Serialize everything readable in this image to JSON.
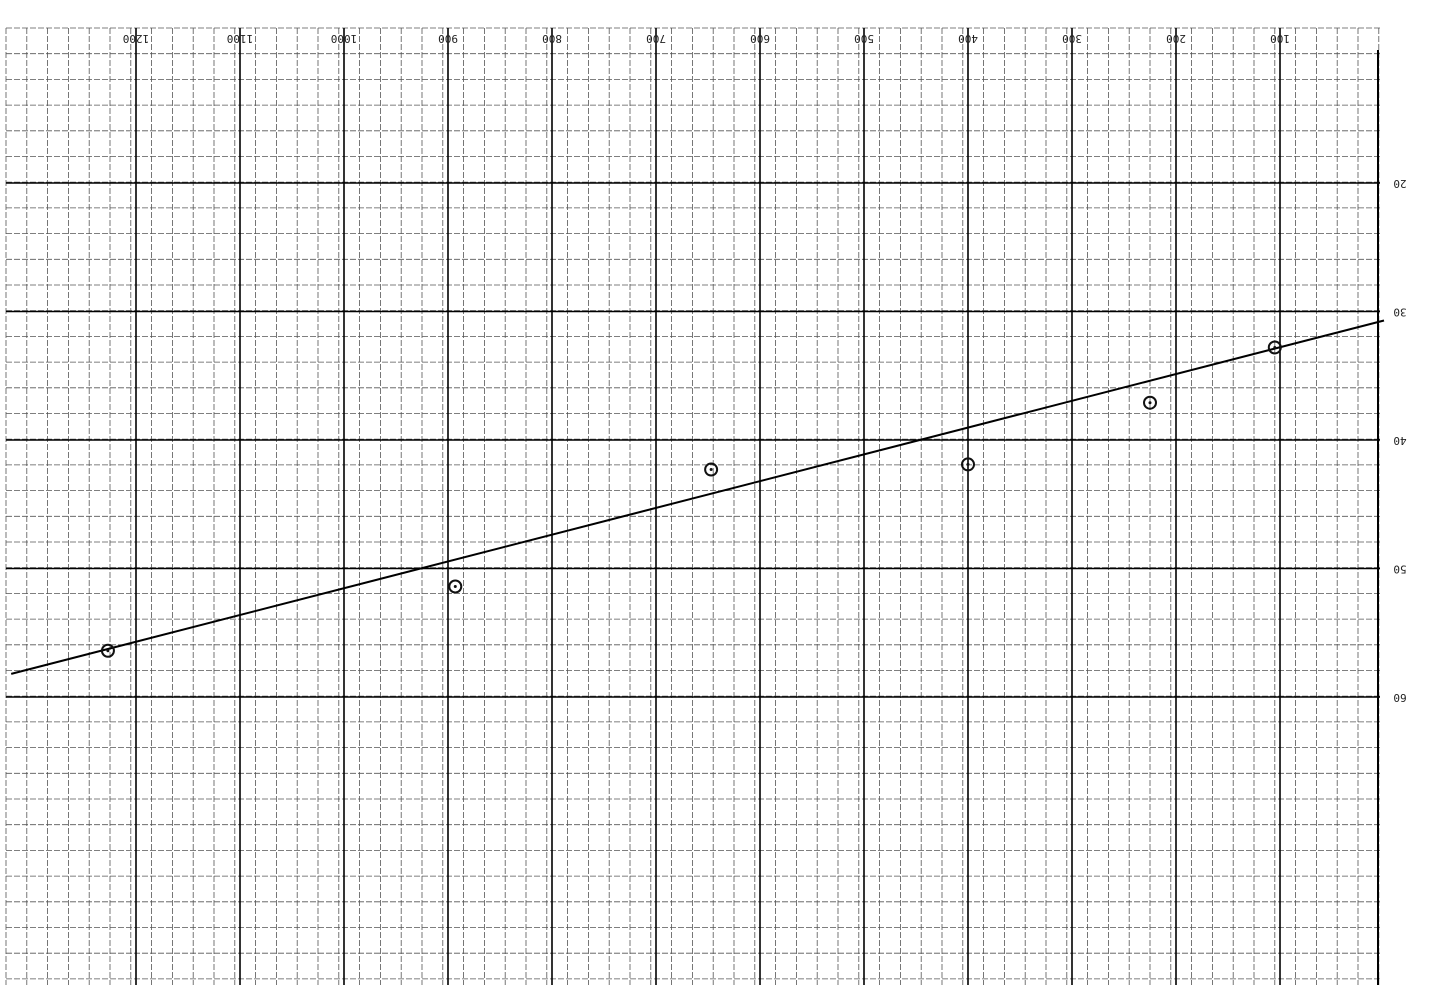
{
  "chart_data": {
    "type": "scatter",
    "x": [
      1227,
      893,
      647,
      400,
      225,
      105
    ],
    "y": [
      56.4,
      51.4,
      42.3,
      41.9,
      37.1,
      32.8
    ],
    "color": "#111111",
    "fit": {
      "x": [
        1320,
        0
      ],
      "y": [
        58.2,
        30.7
      ]
    },
    "xlim": [
      0,
      1325
    ],
    "ylim": [
      10,
      82
    ],
    "xticks": [
      1200,
      1100,
      1000,
      900,
      800,
      700,
      600,
      500,
      400,
      300,
      200,
      100
    ],
    "yticks": [
      20,
      30,
      40,
      50,
      60
    ],
    "grid": true
  }
}
